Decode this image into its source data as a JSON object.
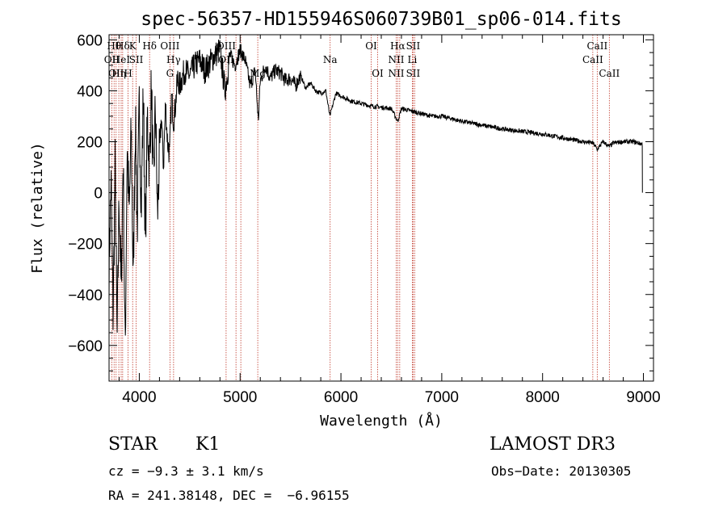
{
  "chart_data": {
    "type": "line",
    "title": "spec-56357-HD155946S060739B01_sp06-014.fits",
    "xlabel": "Wavelength (Å)",
    "ylabel": "Flux (relative)",
    "xlim": [
      3700,
      9100
    ],
    "ylim": [
      -740,
      620
    ],
    "xticks": [
      4000,
      5000,
      6000,
      7000,
      8000,
      9000
    ],
    "xtick_labels": [
      "4000",
      "5000",
      "6000",
      "7000",
      "8000",
      "9000"
    ],
    "yticks": [
      600,
      400,
      200,
      0,
      -200,
      -400,
      -600
    ],
    "ytick_labels": [
      "600",
      "400",
      "200",
      "0",
      "−200",
      "−400",
      "−600"
    ],
    "series": [
      {
        "name": "spectrum",
        "x": [
          3700,
          3720,
          3740,
          3760,
          3780,
          3800,
          3820,
          3840,
          3860,
          3880,
          3900,
          3920,
          3940,
          3960,
          3980,
          4000,
          4020,
          4040,
          4060,
          4080,
          4100,
          4120,
          4140,
          4160,
          4180,
          4200,
          4220,
          4240,
          4260,
          4280,
          4300,
          4320,
          4340,
          4360,
          4380,
          4400,
          4450,
          4500,
          4550,
          4600,
          4650,
          4700,
          4750,
          4800,
          4850,
          4900,
          4950,
          5000,
          5050,
          5100,
          5150,
          5180,
          5200,
          5250,
          5300,
          5350,
          5400,
          5450,
          5500,
          5550,
          5600,
          5650,
          5700,
          5750,
          5800,
          5850,
          5890,
          5950,
          6000,
          6100,
          6200,
          6300,
          6400,
          6500,
          6563,
          6600,
          6700,
          6800,
          6900,
          7000,
          7200,
          7400,
          7600,
          7800,
          8000,
          8200,
          8400,
          8500,
          8542,
          8600,
          8662,
          8700,
          8800,
          8900,
          8990,
          9000
        ],
        "values": [
          -300,
          50,
          -500,
          100,
          -600,
          0,
          -400,
          150,
          -650,
          200,
          -100,
          250,
          -350,
          300,
          -150,
          350,
          -50,
          400,
          -200,
          300,
          100,
          420,
          0,
          350,
          -100,
          150,
          300,
          100,
          350,
          200,
          150,
          380,
          280,
          350,
          450,
          420,
          480,
          460,
          500,
          520,
          480,
          510,
          540,
          560,
          400,
          540,
          500,
          560,
          520,
          420,
          480,
          280,
          440,
          500,
          450,
          480,
          470,
          440,
          450,
          420,
          460,
          410,
          430,
          400,
          390,
          400,
          300,
          390,
          380,
          360,
          350,
          340,
          335,
          330,
          280,
          330,
          320,
          310,
          300,
          300,
          280,
          265,
          250,
          240,
          230,
          215,
          200,
          195,
          170,
          200,
          180,
          195,
          200,
          200,
          190,
          0
        ]
      }
    ],
    "line_markers": [
      {
        "wl": 3727,
        "labels": [
          "OII"
        ],
        "rows": [
          1
        ]
      },
      {
        "wl": 3750,
        "labels": [
          "Hθ"
        ],
        "rows": [
          0
        ]
      },
      {
        "wl": 3770,
        "labels": [
          "OII"
        ],
        "rows": [
          2
        ]
      },
      {
        "wl": 3797,
        "labels": [
          "Hη"
        ],
        "rows": [
          2
        ]
      },
      {
        "wl": 3820,
        "labels": [
          "HeI"
        ],
        "rows": [
          1
        ]
      },
      {
        "wl": 3835,
        "labels": [
          "Hδ"
        ],
        "rows": [
          0
        ]
      },
      {
        "wl": 3889,
        "labels": [
          "H"
        ],
        "rows": [
          2
        ]
      },
      {
        "wl": 3934,
        "labels": [
          "K"
        ],
        "rows": [
          0
        ]
      },
      {
        "wl": 3969,
        "labels": [
          "SII"
        ],
        "rows": [
          1
        ]
      },
      {
        "wl": 4102,
        "labels": [
          "Hδ"
        ],
        "rows": [
          0
        ]
      },
      {
        "wl": 4304,
        "labels": [
          "OIII",
          "G"
        ],
        "rows": [
          0,
          2
        ]
      },
      {
        "wl": 4340,
        "labels": [
          "Hγ"
        ],
        "rows": [
          1
        ]
      },
      {
        "wl": 4861,
        "labels": [
          "OIII",
          "OII"
        ],
        "rows": [
          0,
          1
        ]
      },
      {
        "wl": 4959,
        "labels": [],
        "rows": []
      },
      {
        "wl": 5007,
        "labels": [],
        "rows": []
      },
      {
        "wl": 5175,
        "labels": [
          "Mg"
        ],
        "rows": [
          2
        ]
      },
      {
        "wl": 5893,
        "labels": [
          "Na"
        ],
        "rows": [
          1
        ]
      },
      {
        "wl": 6300,
        "labels": [
          "OI"
        ],
        "rows": [
          0
        ]
      },
      {
        "wl": 6364,
        "labels": [
          "OI"
        ],
        "rows": [
          2
        ]
      },
      {
        "wl": 6548,
        "labels": [
          "NII",
          "NII"
        ],
        "rows": [
          1,
          2
        ]
      },
      {
        "wl": 6563,
        "labels": [
          "Hα"
        ],
        "rows": [
          0
        ]
      },
      {
        "wl": 6583,
        "labels": [],
        "rows": []
      },
      {
        "wl": 6708,
        "labels": [
          "Li"
        ],
        "rows": [
          1
        ]
      },
      {
        "wl": 6716,
        "labels": [
          "SII",
          "SII"
        ],
        "rows": [
          0,
          2
        ]
      },
      {
        "wl": 6731,
        "labels": [],
        "rows": []
      },
      {
        "wl": 8498,
        "labels": [
          "CaII"
        ],
        "rows": [
          1
        ]
      },
      {
        "wl": 8542,
        "labels": [
          "CaII"
        ],
        "rows": [
          0
        ]
      },
      {
        "wl": 8662,
        "labels": [
          "CaII"
        ],
        "rows": [
          2
        ]
      }
    ],
    "marker_color": "#c0392b",
    "line_color": "#000000"
  },
  "info": {
    "object_class": "STAR",
    "subclass": "K1",
    "survey": "LAMOST DR3",
    "cz": "cz = −9.3 ± 3.1 km/s",
    "obs_date": "Obs−Date: 20130305",
    "coords": "RA = 241.38148, DEC =  −6.96155"
  }
}
